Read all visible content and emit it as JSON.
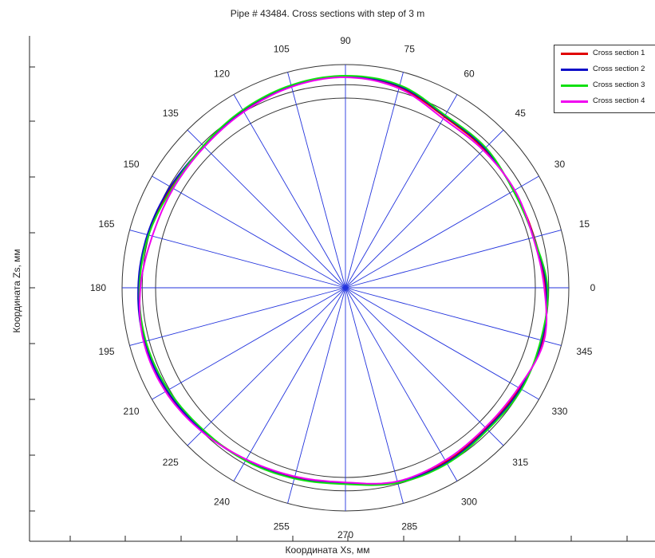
{
  "chart_data": {
    "type": "polar-line",
    "title": "Pipe # 43484. Cross sections with step of 3 m",
    "xlabel": "Координата Xs, мм",
    "ylabel": "Координата Zs, мм",
    "angle_labels": [
      "0",
      "15",
      "30",
      "45",
      "60",
      "75",
      "90",
      "105",
      "120",
      "135",
      "150",
      "165",
      "180",
      "195",
      "210",
      "225",
      "240",
      "255",
      "270",
      "285",
      "300",
      "315",
      "330",
      "345"
    ],
    "reference_circles": [
      0.85,
      0.91,
      1.0
    ],
    "legend_position": "top-right",
    "series": [
      {
        "name": "Cross section 1",
        "color": "#e00000",
        "angles": [
          0,
          15,
          30,
          45,
          60,
          75,
          90,
          105,
          120,
          135,
          150,
          165,
          180,
          195,
          210,
          225,
          240,
          255,
          270,
          285,
          300,
          315,
          330,
          345
        ],
        "r": [
          0.895,
          0.875,
          0.872,
          0.878,
          0.885,
          0.93,
          0.945,
          0.935,
          0.915,
          0.895,
          0.9,
          0.915,
          0.925,
          0.93,
          0.925,
          0.905,
          0.89,
          0.88,
          0.875,
          0.9,
          0.9,
          0.89,
          0.9,
          0.915
        ]
      },
      {
        "name": "Cross section 2",
        "color": "#1010c8",
        "angles": [
          0,
          15,
          30,
          45,
          60,
          75,
          90,
          105,
          120,
          135,
          150,
          165,
          180,
          195,
          210,
          225,
          240,
          255,
          270,
          285,
          300,
          315,
          330,
          345
        ],
        "r": [
          0.9,
          0.873,
          0.87,
          0.883,
          0.89,
          0.935,
          0.948,
          0.938,
          0.918,
          0.897,
          0.905,
          0.918,
          0.928,
          0.932,
          0.922,
          0.905,
          0.893,
          0.883,
          0.878,
          0.902,
          0.905,
          0.895,
          0.905,
          0.91
        ]
      },
      {
        "name": "Cross section 3",
        "color": "#12e012",
        "angles": [
          0,
          15,
          30,
          45,
          60,
          75,
          90,
          105,
          120,
          135,
          150,
          165,
          180,
          195,
          210,
          225,
          240,
          255,
          270,
          285,
          300,
          315,
          330,
          345
        ],
        "r": [
          0.905,
          0.872,
          0.868,
          0.888,
          0.893,
          0.94,
          0.95,
          0.94,
          0.92,
          0.9,
          0.895,
          0.912,
          0.922,
          0.925,
          0.915,
          0.9,
          0.895,
          0.885,
          0.88,
          0.905,
          0.91,
          0.9,
          0.91,
          0.905
        ]
      },
      {
        "name": "Cross section 4",
        "color": "#f000f0",
        "angles": [
          0,
          15,
          30,
          45,
          60,
          75,
          90,
          105,
          120,
          135,
          150,
          165,
          180,
          195,
          210,
          225,
          240,
          255,
          270,
          285,
          300,
          315,
          330,
          345
        ],
        "r": [
          0.89,
          0.87,
          0.875,
          0.872,
          0.875,
          0.925,
          0.943,
          0.932,
          0.91,
          0.893,
          0.89,
          0.895,
          0.918,
          0.935,
          0.93,
          0.91,
          0.888,
          0.875,
          0.872,
          0.898,
          0.893,
          0.885,
          0.895,
          0.92
        ]
      }
    ]
  }
}
